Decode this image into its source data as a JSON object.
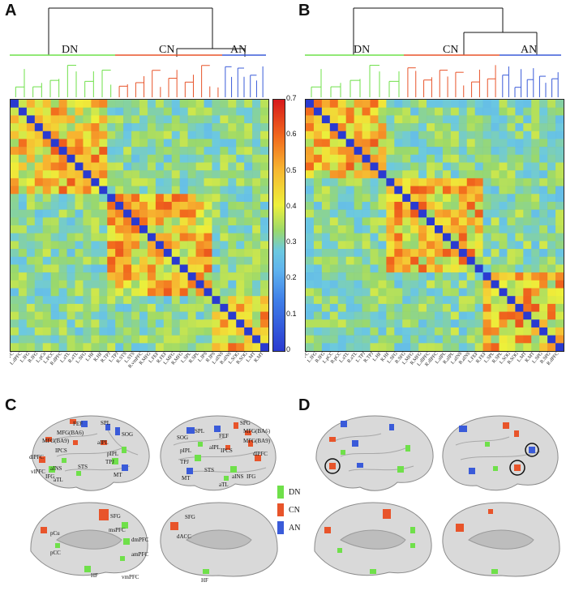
{
  "panels": {
    "a": "A",
    "b": "B",
    "c": "C",
    "d": "D"
  },
  "networks": {
    "dn": "DN",
    "cn": "CN",
    "an": "AN"
  },
  "colors": {
    "dn": "#6fe04a",
    "cn": "#e8542a",
    "an": "#3a5bd9",
    "diag": "#2a3ad0"
  },
  "colorbar": {
    "ticks": [
      "0.7",
      "0.6",
      "0.5",
      "0.4",
      "0.3",
      "0.2",
      "0.1",
      "0"
    ],
    "range": [
      0,
      0.7
    ]
  },
  "legend": {
    "dn": "DN",
    "cn": "CN",
    "an": "AN"
  },
  "roi_c_lateral_left": [
    "FEF",
    "SPL",
    "MFG(BA6)",
    "SOG",
    "MFG(BA9)",
    "aIPL",
    "IPCS",
    "dlPFC",
    "pIPL",
    "aINS",
    "STS",
    "TPJ",
    "vlPFC",
    "IFG",
    "aTL",
    "MT"
  ],
  "roi_c_lateral_right": [
    "SPG",
    "SPL",
    "SOG",
    "FEF",
    "MFG(BA6)",
    "MFG(BA9)",
    "pIPL",
    "IPCS",
    "dlPFC",
    "TPJ",
    "aIPL",
    "STS",
    "MT",
    "aINS",
    "IFG",
    "aTL"
  ],
  "roi_c_medial_left": [
    "SFG",
    "pCu",
    "msPFC",
    "dmPFC",
    "pCC",
    "amPFC",
    "HF",
    "vmPFC"
  ],
  "roi_c_medial_right": [
    "SFG",
    "dACC",
    "HF"
  ],
  "x_labels_a": [
    "L.aPFC",
    "L.dPFC",
    "L.IFG",
    "R.IFG",
    "L.pCu",
    "L.PCC",
    "R.dPFC",
    "L.aTL",
    "R.aTL",
    "L.SFG",
    "L.HF",
    "R.HF",
    "R.TPJ",
    "L.TPJ",
    "R.STS",
    "L.STS",
    "R.vmPFC",
    "R.MFG",
    "L.FEF",
    "R.FEF",
    "L.MFG",
    "R.MFG",
    "L.SPL",
    "R.SPL",
    "L.IPS",
    "R.IPS",
    "L.aINS",
    "R.aINS",
    "L.SOG",
    "R.SOG",
    "L.MT",
    "R.MT"
  ],
  "x_labels_b": [
    "L.amPFC",
    "L.IFG",
    "R.IFG",
    "L.pCC",
    "R.pCC",
    "L.aTL",
    "R.aTL",
    "L.TPJ",
    "R.TPJ",
    "L.HF",
    "R.HF",
    "L.SFG",
    "R.SFG",
    "L.MFG",
    "R.MFG",
    "L.dlPFC",
    "R.dlPFC",
    "L.aIPL",
    "R.aIPL",
    "L.aINS",
    "R.aINS",
    "L.FEF",
    "R.FEF",
    "L.SPL",
    "R.SPL",
    "L.SOG",
    "R.SOG",
    "L.MT",
    "R.MT",
    "L.SPG",
    "R.SPG",
    "R.dPFC"
  ]
}
